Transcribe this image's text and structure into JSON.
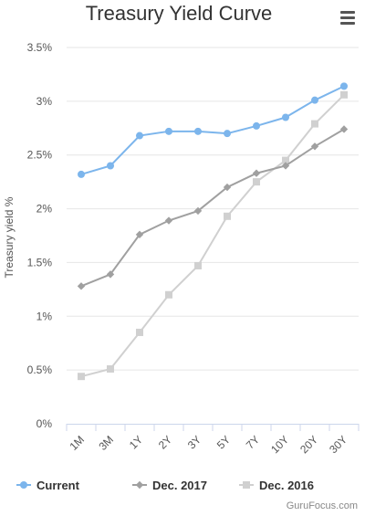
{
  "header": {
    "menu_icon": "hamburger-menu-icon"
  },
  "credit": "GuruFocus.com",
  "chart_data": {
    "type": "line",
    "title": "Treasury Yield Curve",
    "xlabel": "",
    "ylabel": "Treasury yield %",
    "categories": [
      "1M",
      "3M",
      "1Y",
      "2Y",
      "3Y",
      "5Y",
      "7Y",
      "10Y",
      "20Y",
      "30Y"
    ],
    "ylim": [
      0,
      3.5
    ],
    "yticks": [
      {
        "value": 0,
        "label": "0%"
      },
      {
        "value": 0.5,
        "label": "0.5%"
      },
      {
        "value": 1,
        "label": "1%"
      },
      {
        "value": 1.5,
        "label": "1.5%"
      },
      {
        "value": 2,
        "label": "2%"
      },
      {
        "value": 2.5,
        "label": "2.5%"
      },
      {
        "value": 3,
        "label": "3%"
      },
      {
        "value": 3.5,
        "label": "3.5%"
      }
    ],
    "grid": true,
    "legend_position": "bottom",
    "series": [
      {
        "name": "Current",
        "color": "#7cb5ec",
        "marker": "circle",
        "values": [
          2.32,
          2.4,
          2.68,
          2.72,
          2.72,
          2.7,
          2.77,
          2.85,
          3.01,
          3.14
        ]
      },
      {
        "name": "Dec. 2017",
        "color": "#a0a0a0",
        "marker": "diamond",
        "values": [
          1.28,
          1.39,
          1.76,
          1.89,
          1.98,
          2.2,
          2.33,
          2.4,
          2.58,
          2.74
        ]
      },
      {
        "name": "Dec. 2016",
        "color": "#d0d0d0",
        "marker": "square",
        "values": [
          0.44,
          0.51,
          0.85,
          1.2,
          1.47,
          1.93,
          2.25,
          2.45,
          2.79,
          3.06
        ]
      }
    ]
  }
}
